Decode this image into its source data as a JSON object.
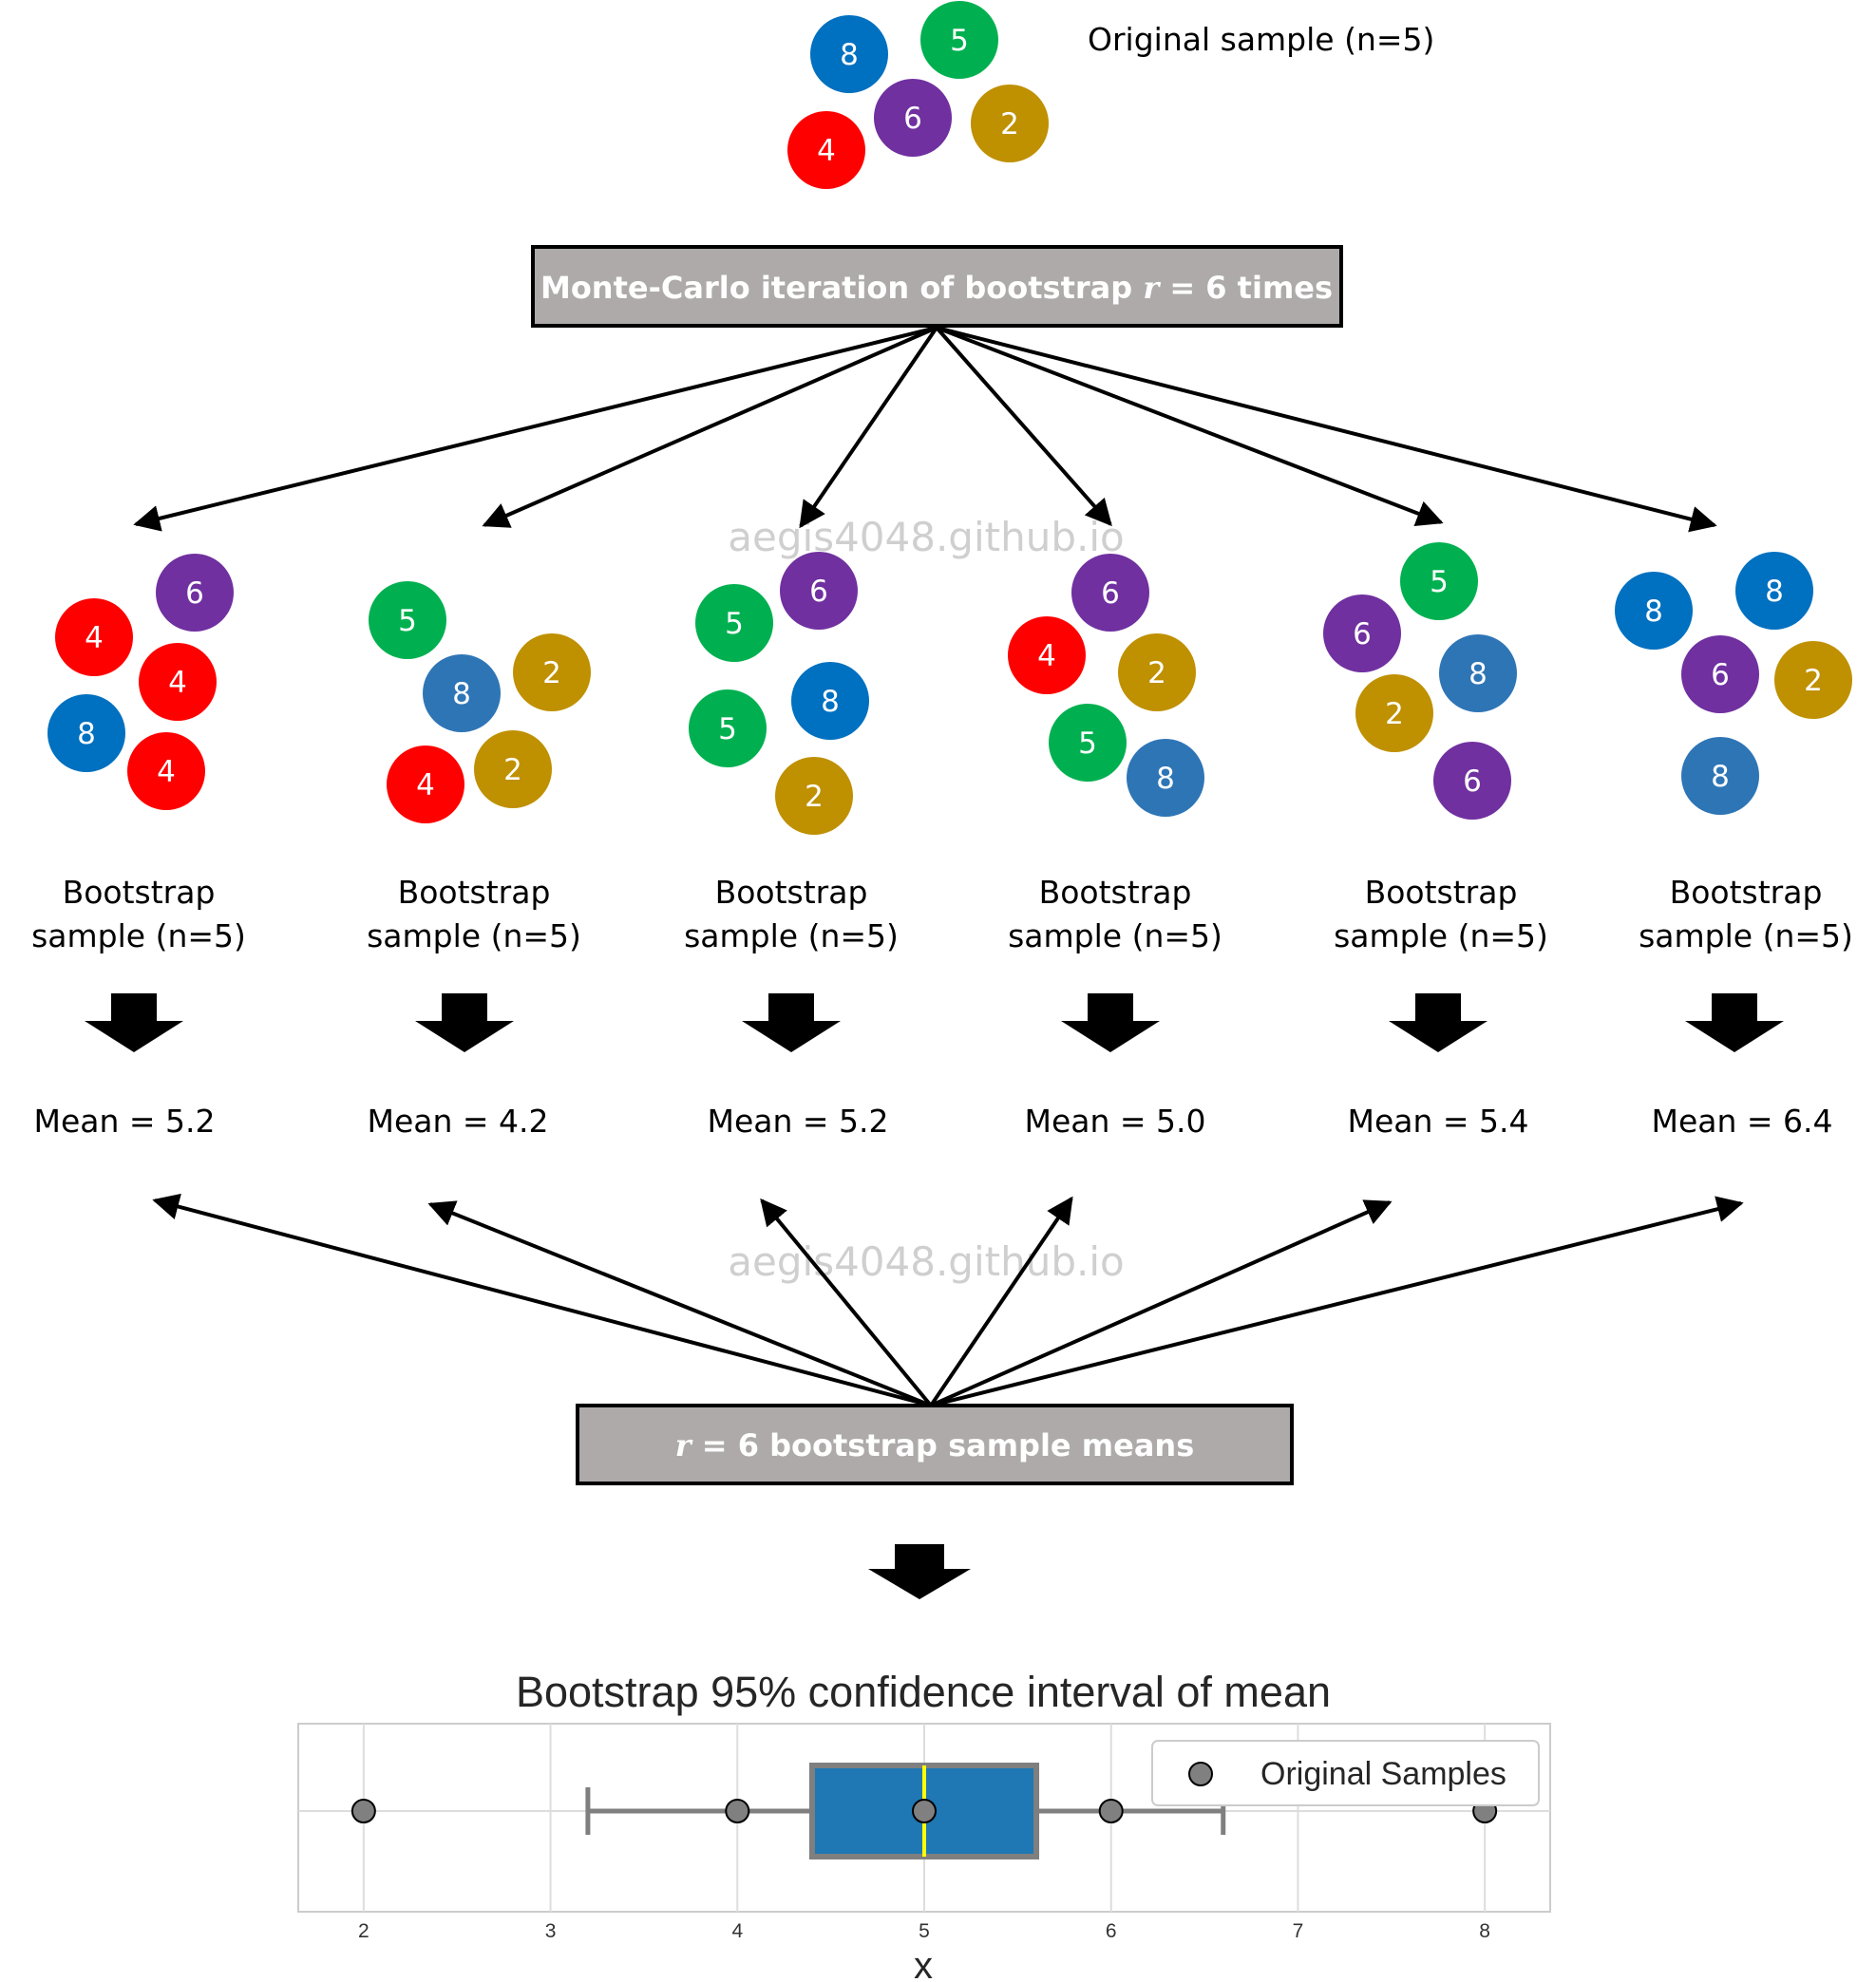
{
  "original": {
    "label": "Original sample (n=5)",
    "balls": [
      {
        "value": "8",
        "color": "blue"
      },
      {
        "value": "5",
        "color": "green"
      },
      {
        "value": "6",
        "color": "purple"
      },
      {
        "value": "2",
        "color": "gold"
      },
      {
        "value": "4",
        "color": "red"
      }
    ]
  },
  "top_box": {
    "text_before": "Monte-Carlo iteration of bootstrap ",
    "math_var": "r",
    "math_rest": " = 6",
    "text_after": " times"
  },
  "watermark": "aegis4048.github.io",
  "palette": {
    "red": "#ff0000",
    "blue_dark": "#0070c0",
    "blue_light": "#2e75b6",
    "green": "#00b050",
    "purple": "#7030a0",
    "gold": "#bf9000",
    "box_fill": "#aeaaaa",
    "box_plot_fill": "#1f77b4",
    "median_line": "#ffff00",
    "whisker": "#7f7f7f",
    "point_fill": "#808080"
  },
  "bootstrap_label_line1": "Bootstrap",
  "bootstrap_label_line2": "sample (n=5)",
  "bootstrap_samples": [
    {
      "mean_label": "Mean = 5.2",
      "balls": [
        {
          "value": "6",
          "color": "purple"
        },
        {
          "value": "4",
          "color": "red"
        },
        {
          "value": "4",
          "color": "red"
        },
        {
          "value": "8",
          "color": "blue_dark"
        },
        {
          "value": "4",
          "color": "red"
        }
      ]
    },
    {
      "mean_label": "Mean = 4.2",
      "balls": [
        {
          "value": "5",
          "color": "green"
        },
        {
          "value": "2",
          "color": "gold"
        },
        {
          "value": "8",
          "color": "blue_light"
        },
        {
          "value": "2",
          "color": "gold"
        },
        {
          "value": "4",
          "color": "red"
        }
      ]
    },
    {
      "mean_label": "Mean = 5.2",
      "balls": [
        {
          "value": "6",
          "color": "purple"
        },
        {
          "value": "5",
          "color": "green"
        },
        {
          "value": "8",
          "color": "blue_dark"
        },
        {
          "value": "5",
          "color": "green"
        },
        {
          "value": "2",
          "color": "gold"
        }
      ]
    },
    {
      "mean_label": "Mean = 5.0",
      "balls": [
        {
          "value": "6",
          "color": "purple"
        },
        {
          "value": "4",
          "color": "red"
        },
        {
          "value": "2",
          "color": "gold"
        },
        {
          "value": "5",
          "color": "green"
        },
        {
          "value": "8",
          "color": "blue_light"
        }
      ]
    },
    {
      "mean_label": "Mean = 5.4",
      "balls": [
        {
          "value": "5",
          "color": "green"
        },
        {
          "value": "6",
          "color": "purple"
        },
        {
          "value": "8",
          "color": "blue_light"
        },
        {
          "value": "2",
          "color": "gold"
        },
        {
          "value": "6",
          "color": "purple"
        }
      ]
    },
    {
      "mean_label": "Mean = 6.4",
      "balls": [
        {
          "value": "8",
          "color": "blue_dark"
        },
        {
          "value": "8",
          "color": "blue_dark"
        },
        {
          "value": "6",
          "color": "purple"
        },
        {
          "value": "2",
          "color": "gold"
        },
        {
          "value": "8",
          "color": "blue_light"
        }
      ]
    }
  ],
  "bottom_box": {
    "math_var": "r",
    "math_rest": " = 6",
    "text_after": " bootstrap sample means"
  },
  "chart_data": {
    "type": "box",
    "title": "Bootstrap 95% confidence interval of mean",
    "xlabel": "x",
    "ylabel": "",
    "xlim": [
      1.65,
      8.35
    ],
    "xticks": [
      "2",
      "3",
      "4",
      "5",
      "6",
      "7",
      "8"
    ],
    "grid": true,
    "box": {
      "whisker_low": 3.2,
      "q1": 4.4,
      "median": 5.0,
      "q3": 5.6,
      "whisker_high": 6.6
    },
    "points_series": {
      "name": "Original Samples",
      "x": [
        2,
        4,
        5,
        6,
        8
      ]
    },
    "legend": {
      "position": "top-right",
      "label": "Original Samples"
    }
  }
}
